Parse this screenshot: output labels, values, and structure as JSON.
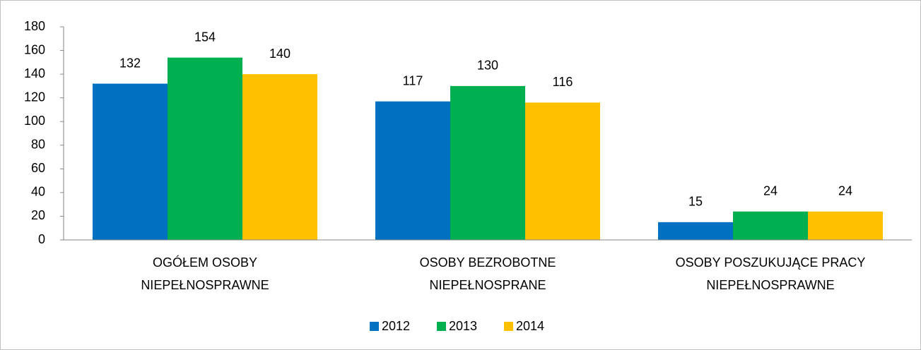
{
  "chart_data": {
    "type": "bar",
    "categories": [
      "OGÓŁEM OSOBY\nNIEPEŁNOSPRAWNE",
      "OSOBY BEZROBOTNE\nNIEPEŁNOSPRANE",
      "OSOBY POSZUKUJĄCE PRACY\nNIEPEŁNOSPRAWNE"
    ],
    "series": [
      {
        "name": "2012",
        "color": "#0070c0",
        "values": [
          132,
          117,
          15
        ]
      },
      {
        "name": "2013",
        "color": "#00b050",
        "values": [
          154,
          130,
          24
        ]
      },
      {
        "name": "2014",
        "color": "#ffc000",
        "values": [
          140,
          116,
          24
        ]
      }
    ],
    "ylim": [
      0,
      180
    ],
    "yticks": [
      0,
      20,
      40,
      60,
      80,
      100,
      120,
      140,
      160,
      180
    ],
    "grid": false,
    "legend": "bottom"
  }
}
